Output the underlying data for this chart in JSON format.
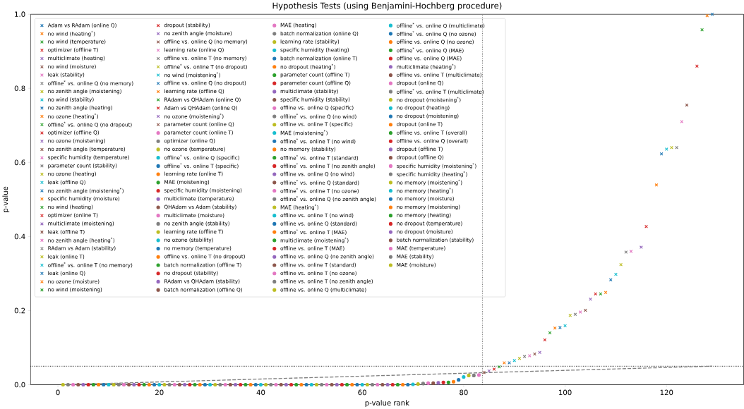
{
  "chart_data": {
    "type": "scatter",
    "title": "Hypothesis Tests (using Benjamini-Hochberg procedure)",
    "xlabel": "p-value rank",
    "ylabel": "p-value",
    "xlim": [
      -5.4,
      135.2
    ],
    "ylim": [
      0,
      1
    ],
    "xticks": [
      0,
      20,
      40,
      60,
      80,
      100,
      120
    ],
    "yticks": [
      {
        "value": 0,
        "label": "0.0"
      },
      {
        "value": 0.2,
        "label": "0.2"
      },
      {
        "value": 0.4,
        "label": "0.4"
      },
      {
        "value": 0.6,
        "label": "0.6"
      },
      {
        "value": 0.8,
        "label": "0.8"
      },
      {
        "value": 1,
        "label": "1.0"
      }
    ],
    "legend": "top left",
    "ref_lines": [
      {
        "axis": "y",
        "value": 0.05,
        "color": "#000000",
        "line_style": "dotted"
      },
      {
        "axis": "x",
        "value": 83.7,
        "color": "#000000",
        "line_style": "dotted"
      }
    ],
    "series": [
      {
        "name": "Adam vs RAdam (online Q)",
        "color": "#1f77b4",
        "marker": "cross",
        "x": [
          129
        ],
        "values": [
          1.0
        ]
      },
      {
        "name": "no wind (heating$^{*}$)",
        "color": "#ff7f0e",
        "marker": "cross",
        "x": [
          128
        ],
        "values": [
          0.996
        ]
      },
      {
        "name": "no wind (temperature)",
        "color": "#2ca02c",
        "marker": "cross",
        "x": [
          127
        ],
        "values": [
          0.958
        ]
      },
      {
        "name": "optimizer (offline T)",
        "color": "#d62728",
        "marker": "cross",
        "x": [
          126
        ],
        "values": [
          0.86
        ]
      },
      {
        "name": "multiclimate (heating)",
        "color": "#9467bd",
        "marker": "cross",
        "values": [
          null
        ]
      },
      {
        "name": "no wind (moisture)",
        "color": "#8c564b",
        "marker": "cross",
        "x": [
          124
        ],
        "values": [
          0.755
        ]
      },
      {
        "name": "leak (stability)",
        "color": "#e377c2",
        "marker": "cross",
        "x": [
          123
        ],
        "values": [
          0.71
        ]
      },
      {
        "name": "offline$^{*}$ vs. online Q (no memory)",
        "color": "#7f7f7f",
        "marker": "cross",
        "x": [
          122
        ],
        "values": [
          0.64
        ]
      },
      {
        "name": "no zenith angle (moistening)",
        "color": "#bcbd22",
        "marker": "cross",
        "x": [
          121
        ],
        "values": [
          0.64
        ]
      },
      {
        "name": "no wind (stability)",
        "color": "#17becf",
        "marker": "cross",
        "x": [
          120
        ],
        "values": [
          0.636
        ]
      },
      {
        "name": "no zenith angle (heating)",
        "color": "#1f77b4",
        "marker": "cross",
        "x": [
          119
        ],
        "values": [
          0.623
        ]
      },
      {
        "name": "no ozone (heating$^{*}$)",
        "color": "#ff7f0e",
        "marker": "cross",
        "x": [
          118
        ],
        "values": [
          0.539
        ]
      },
      {
        "name": "offline$^{*}$ vs. online Q (no dropout)",
        "color": "#2ca02c",
        "marker": "cross",
        "values": [
          null
        ]
      },
      {
        "name": "optimizer (offline Q)",
        "color": "#d62728",
        "marker": "cross",
        "x": [
          116
        ],
        "values": [
          0.427
        ]
      },
      {
        "name": "no ozone (moistening)",
        "color": "#9467bd",
        "marker": "cross",
        "x": [
          115
        ],
        "values": [
          0.371
        ]
      },
      {
        "name": "no zenith angle (temperature)",
        "color": "#8c564b",
        "marker": "cross",
        "values": [
          null
        ]
      },
      {
        "name": "specific humidity (temperature)",
        "color": "#e377c2",
        "marker": "cross",
        "x": [
          113
        ],
        "values": [
          0.36
        ]
      },
      {
        "name": "parameter count (stability)",
        "color": "#7f7f7f",
        "marker": "cross",
        "x": [
          112
        ],
        "values": [
          0.358
        ]
      },
      {
        "name": "no ozone (heating)",
        "color": "#bcbd22",
        "marker": "cross",
        "x": [
          111
        ],
        "values": [
          0.324
        ]
      },
      {
        "name": "leak (offline Q)",
        "color": "#17becf",
        "marker": "cross",
        "x": [
          110
        ],
        "values": [
          0.298
        ]
      },
      {
        "name": "no zenith angle (moistening$^{*}$)",
        "color": "#1f77b4",
        "marker": "cross",
        "x": [
          109
        ],
        "values": [
          0.283
        ]
      },
      {
        "name": "specific humidity (moisture)",
        "color": "#ff7f0e",
        "marker": "cross",
        "x": [
          108
        ],
        "values": [
          0.249
        ]
      },
      {
        "name": "no wind (heating)",
        "color": "#2ca02c",
        "marker": "cross",
        "x": [
          107
        ],
        "values": [
          0.245
        ]
      },
      {
        "name": "optimizer (online T)",
        "color": "#d62728",
        "marker": "cross",
        "x": [
          106
        ],
        "values": [
          0.245
        ]
      },
      {
        "name": "multiclimate (moistening)",
        "color": "#9467bd",
        "marker": "cross",
        "x": [
          105
        ],
        "values": [
          0.231
        ]
      },
      {
        "name": "leak (offline T)",
        "color": "#8c564b",
        "marker": "cross",
        "x": [
          104
        ],
        "values": [
          0.201
        ]
      },
      {
        "name": "no zenith angle (heating$^{*}$)",
        "color": "#e377c2",
        "marker": "cross",
        "x": [
          103
        ],
        "values": [
          0.196
        ]
      },
      {
        "name": "RAdam vs Adam (stability)",
        "color": "#7f7f7f",
        "marker": "cross",
        "x": [
          102
        ],
        "values": [
          0.19
        ]
      },
      {
        "name": "leak (online T)",
        "color": "#bcbd22",
        "marker": "cross",
        "x": [
          101
        ],
        "values": [
          0.187
        ]
      },
      {
        "name": "offline$^{*}$ vs. online T (no memory)",
        "color": "#17becf",
        "marker": "cross",
        "x": [
          100
        ],
        "values": [
          0.159
        ]
      },
      {
        "name": "leak (online Q)",
        "color": "#1f77b4",
        "marker": "cross",
        "x": [
          99
        ],
        "values": [
          0.154
        ]
      },
      {
        "name": "no ozone (moisture)",
        "color": "#ff7f0e",
        "marker": "cross",
        "x": [
          98
        ],
        "values": [
          0.153
        ]
      },
      {
        "name": "no wind (moistening)",
        "color": "#2ca02c",
        "marker": "cross",
        "x": [
          97
        ],
        "values": [
          0.14
        ]
      },
      {
        "name": "dropout (stability)",
        "color": "#d62728",
        "marker": "cross",
        "x": [
          96
        ],
        "values": [
          0.121
        ]
      },
      {
        "name": "no zenith angle (moisture)",
        "color": "#9467bd",
        "marker": "cross",
        "x": [
          95
        ],
        "values": [
          0.087
        ]
      },
      {
        "name": "offline vs. online Q (no memory)",
        "color": "#8c564b",
        "marker": "cross",
        "x": [
          94
        ],
        "values": [
          0.083
        ]
      },
      {
        "name": "learning rate (online Q)",
        "color": "#e377c2",
        "marker": "cross",
        "x": [
          93
        ],
        "values": [
          0.078
        ]
      },
      {
        "name": "offline vs. online T (no memory)",
        "color": "#7f7f7f",
        "marker": "cross",
        "x": [
          92
        ],
        "values": [
          0.076
        ]
      },
      {
        "name": "offline$^{*}$ vs. online T (no dropout)",
        "color": "#bcbd22",
        "marker": "cross",
        "x": [
          91
        ],
        "values": [
          0.071
        ]
      },
      {
        "name": "no wind (moistening$^{*}$)",
        "color": "#17becf",
        "marker": "cross",
        "x": [
          90
        ],
        "values": [
          0.065
        ]
      },
      {
        "name": "offline vs. online Q (no dropout)",
        "color": "#1f77b4",
        "marker": "cross",
        "x": [
          89
        ],
        "values": [
          0.059
        ]
      },
      {
        "name": "learning rate (offline Q)",
        "color": "#ff7f0e",
        "marker": "cross",
        "x": [
          88
        ],
        "values": [
          0.059
        ]
      },
      {
        "name": "RAdam vs QHAdam (online Q)",
        "color": "#2ca02c",
        "marker": "cross",
        "x": [
          87
        ],
        "values": [
          0.048
        ]
      },
      {
        "name": "Adam vs QHAdam (online Q)",
        "color": "#d62728",
        "marker": "cross",
        "x": [
          86
        ],
        "values": [
          0.042
        ]
      },
      {
        "name": "no ozone (moistening$^{*}$)",
        "color": "#9467bd",
        "marker": "cross",
        "x": [
          85
        ],
        "values": [
          0.037
        ]
      },
      {
        "name": "parameter count (online Q)",
        "color": "#8c564b",
        "marker": "cross",
        "x": [
          84
        ],
        "values": [
          0.033
        ]
      },
      {
        "name": "parameter count (online T)",
        "color": "#e377c2",
        "marker": "circle",
        "x": [
          83
        ],
        "values": [
          0.026
        ]
      },
      {
        "name": "optimizer (online Q)",
        "color": "#7f7f7f",
        "marker": "circle",
        "x": [
          82
        ],
        "values": [
          0.025
        ]
      },
      {
        "name": "no ozone (temperature)",
        "color": "#bcbd22",
        "marker": "circle",
        "x": [
          81
        ],
        "values": [
          0.025
        ]
      },
      {
        "name": "offline$^{*}$ vs. online Q (specific)",
        "color": "#17becf",
        "marker": "circle",
        "x": [
          80
        ],
        "values": [
          0.021
        ]
      },
      {
        "name": "offline$^{*}$ vs. online T (specific)",
        "color": "#1f77b4",
        "marker": "circle",
        "x": [
          79
        ],
        "values": [
          0.013
        ]
      },
      {
        "name": "learning rate (online T)",
        "color": "#ff7f0e",
        "marker": "circle",
        "x": [
          78
        ],
        "values": [
          0.008
        ]
      },
      {
        "name": "MAE (moistening)",
        "color": "#2ca02c",
        "marker": "circle",
        "x": [
          77
        ],
        "values": [
          0.006
        ]
      },
      {
        "name": "specific humidity (moistening)",
        "color": "#d62728",
        "marker": "circle",
        "x": [
          76
        ],
        "values": [
          0.006
        ]
      },
      {
        "name": "multiclimate (temperature)",
        "color": "#9467bd",
        "marker": "circle",
        "x": [
          75
        ],
        "values": [
          0.005
        ]
      },
      {
        "name": "QHAdam vs Adam (stability)",
        "color": "#8c564b",
        "marker": "circle",
        "x": [
          74
        ],
        "values": [
          0.004
        ]
      },
      {
        "name": "multiclimate (moisture)",
        "color": "#e377c2",
        "marker": "circle",
        "x": [
          73
        ],
        "values": [
          0.004
        ]
      },
      {
        "name": "no zenith angle (stability)",
        "color": "#7f7f7f",
        "marker": "circle",
        "x": [
          72
        ],
        "values": [
          0.003
        ]
      },
      {
        "name": "learning rate (offline T)",
        "color": "#bcbd22",
        "marker": "circle",
        "x": [
          71
        ],
        "values": [
          0.002
        ]
      },
      {
        "name": "no ozone (stability)",
        "color": "#17becf",
        "marker": "circle",
        "x": [
          70
        ],
        "values": [
          0.001
        ]
      },
      {
        "name": "no memory (temperature)",
        "color": "#1f77b4",
        "marker": "circle",
        "x": [
          69
        ],
        "values": [
          0
        ]
      },
      {
        "name": "offline vs. online T (no dropout)",
        "color": "#ff7f0e",
        "marker": "circle",
        "x": [
          68
        ],
        "values": [
          0
        ]
      },
      {
        "name": "batch normalization (offline T)",
        "color": "#2ca02c",
        "marker": "circle",
        "x": [
          67
        ],
        "values": [
          0
        ]
      },
      {
        "name": "no dropout (stability)",
        "color": "#d62728",
        "marker": "circle",
        "x": [
          66
        ],
        "values": [
          0
        ]
      },
      {
        "name": "RAdam vs QHAdam (stability)",
        "color": "#9467bd",
        "marker": "circle",
        "x": [
          65
        ],
        "values": [
          0
        ]
      },
      {
        "name": "batch normalization (offline Q)",
        "color": "#8c564b",
        "marker": "circle",
        "x": [
          64
        ],
        "values": [
          0
        ]
      },
      {
        "name": "MAE (heating)",
        "color": "#e377c2",
        "marker": "circle",
        "x": [
          63
        ],
        "values": [
          0
        ]
      },
      {
        "name": "batch normalization (online Q)",
        "color": "#7f7f7f",
        "marker": "circle",
        "x": [
          62
        ],
        "values": [
          0
        ]
      },
      {
        "name": "learning rate (stability)",
        "color": "#bcbd22",
        "marker": "circle",
        "x": [
          61
        ],
        "values": [
          0
        ]
      },
      {
        "name": "specific humidity (heating)",
        "color": "#17becf",
        "marker": "circle",
        "x": [
          60
        ],
        "values": [
          0
        ]
      },
      {
        "name": "batch normalization (online T)",
        "color": "#1f77b4",
        "marker": "circle",
        "x": [
          59
        ],
        "values": [
          0
        ]
      },
      {
        "name": "no dropout (heating$^{*}$)",
        "color": "#ff7f0e",
        "marker": "circle",
        "x": [
          58
        ],
        "values": [
          0
        ]
      },
      {
        "name": "parameter count (offline T)",
        "color": "#2ca02c",
        "marker": "circle",
        "x": [
          57
        ],
        "values": [
          0
        ]
      },
      {
        "name": "parameter count (offline Q)",
        "color": "#d62728",
        "marker": "circle",
        "x": [
          56
        ],
        "values": [
          0
        ]
      },
      {
        "name": "multiclimate (stability)",
        "color": "#9467bd",
        "marker": "circle",
        "x": [
          55
        ],
        "values": [
          0
        ]
      },
      {
        "name": "specific humidity (stability)",
        "color": "#8c564b",
        "marker": "circle",
        "x": [
          54
        ],
        "values": [
          0
        ]
      },
      {
        "name": "offline vs. online Q (specific)",
        "color": "#e377c2",
        "marker": "circle",
        "x": [
          53
        ],
        "values": [
          0
        ]
      },
      {
        "name": "offline$^{*}$ vs. online Q (no wind)",
        "color": "#7f7f7f",
        "marker": "circle",
        "x": [
          52
        ],
        "values": [
          0
        ]
      },
      {
        "name": "offline vs. online T (specific)",
        "color": "#bcbd22",
        "marker": "circle",
        "x": [
          51
        ],
        "values": [
          0
        ]
      },
      {
        "name": "MAE (moistening$^{*}$)",
        "color": "#17becf",
        "marker": "circle",
        "x": [
          50
        ],
        "values": [
          0
        ]
      },
      {
        "name": "offline$^{*}$ vs. online T (no wind)",
        "color": "#1f77b4",
        "marker": "circle",
        "x": [
          49
        ],
        "values": [
          0
        ]
      },
      {
        "name": "no memory (stability)",
        "color": "#ff7f0e",
        "marker": "circle",
        "x": [
          48
        ],
        "values": [
          0
        ]
      },
      {
        "name": "offline$^{*}$ vs. online T (standard)",
        "color": "#2ca02c",
        "marker": "circle",
        "x": [
          47
        ],
        "values": [
          0
        ]
      },
      {
        "name": "offline$^{*}$ vs. online T (no zenith angle)",
        "color": "#d62728",
        "marker": "circle",
        "x": [
          46
        ],
        "values": [
          0
        ]
      },
      {
        "name": "offline vs. online Q (no wind)",
        "color": "#9467bd",
        "marker": "circle",
        "x": [
          45
        ],
        "values": [
          0
        ]
      },
      {
        "name": "offline$^{*}$ vs. online Q (standard)",
        "color": "#8c564b",
        "marker": "circle",
        "x": [
          44
        ],
        "values": [
          0
        ]
      },
      {
        "name": "offline$^{*}$ vs. online T (no ozone)",
        "color": "#e377c2",
        "marker": "circle",
        "x": [
          43
        ],
        "values": [
          0
        ]
      },
      {
        "name": "offline$^{*}$ vs. online Q (no zenith angle)",
        "color": "#7f7f7f",
        "marker": "circle",
        "x": [
          42
        ],
        "values": [
          0
        ]
      },
      {
        "name": "MAE (heating$^{*}$)",
        "color": "#bcbd22",
        "marker": "circle",
        "x": [
          41
        ],
        "values": [
          0
        ]
      },
      {
        "name": "offline vs. online T (no wind)",
        "color": "#17becf",
        "marker": "circle",
        "x": [
          40
        ],
        "values": [
          0
        ]
      },
      {
        "name": "offline vs. online Q (standard)",
        "color": "#1f77b4",
        "marker": "circle",
        "x": [
          39
        ],
        "values": [
          0
        ]
      },
      {
        "name": "offline$^{*}$ vs. online T (MAE)",
        "color": "#ff7f0e",
        "marker": "circle",
        "x": [
          38
        ],
        "values": [
          0
        ]
      },
      {
        "name": "multiclimate (moistening$^{*}$)",
        "color": "#2ca02c",
        "marker": "circle",
        "x": [
          37
        ],
        "values": [
          0
        ]
      },
      {
        "name": "offline vs. online T (MAE)",
        "color": "#d62728",
        "marker": "circle",
        "x": [
          36
        ],
        "values": [
          0
        ]
      },
      {
        "name": "offline vs. online Q (no zenith angle)",
        "color": "#9467bd",
        "marker": "circle",
        "x": [
          35
        ],
        "values": [
          0
        ]
      },
      {
        "name": "offline vs. online T (standard)",
        "color": "#8c564b",
        "marker": "circle",
        "x": [
          34
        ],
        "values": [
          0
        ]
      },
      {
        "name": "offline vs. online T (no ozone)",
        "color": "#e377c2",
        "marker": "circle",
        "x": [
          33
        ],
        "values": [
          0
        ]
      },
      {
        "name": "offline vs. online T (no zenith angle)",
        "color": "#7f7f7f",
        "marker": "circle",
        "x": [
          32
        ],
        "values": [
          0
        ]
      },
      {
        "name": "offline vs. online Q (multiclimate)",
        "color": "#bcbd22",
        "marker": "circle",
        "x": [
          31
        ],
        "values": [
          0
        ]
      },
      {
        "name": "offline$^{*}$ vs. online Q (multiclimate)",
        "color": "#17becf",
        "marker": "circle",
        "x": [
          30
        ],
        "values": [
          0
        ]
      },
      {
        "name": "offline$^{*}$ vs. online Q (no ozone)",
        "color": "#1f77b4",
        "marker": "circle",
        "x": [
          29
        ],
        "values": [
          0
        ]
      },
      {
        "name": "offline vs. online Q (no ozone)",
        "color": "#ff7f0e",
        "marker": "circle",
        "x": [
          28
        ],
        "values": [
          0
        ]
      },
      {
        "name": "offline$^{*}$ vs. online Q (MAE)",
        "color": "#2ca02c",
        "marker": "circle",
        "x": [
          27
        ],
        "values": [
          0
        ]
      },
      {
        "name": "offline vs. online Q (MAE)",
        "color": "#d62728",
        "marker": "circle",
        "x": [
          26
        ],
        "values": [
          0
        ]
      },
      {
        "name": "multiclimate (heating$^{*}$)",
        "color": "#9467bd",
        "marker": "circle",
        "x": [
          25
        ],
        "values": [
          0
        ]
      },
      {
        "name": "offline vs. online T (multiclimate)",
        "color": "#8c564b",
        "marker": "circle",
        "x": [
          24
        ],
        "values": [
          0
        ]
      },
      {
        "name": "dropout (online Q)",
        "color": "#e377c2",
        "marker": "circle",
        "x": [
          23
        ],
        "values": [
          0
        ]
      },
      {
        "name": "offline$^{*}$ vs. online T (multiclimate)",
        "color": "#7f7f7f",
        "marker": "circle",
        "x": [
          22
        ],
        "values": [
          0
        ]
      },
      {
        "name": "no dropout (moistening$^{*}$)",
        "color": "#bcbd22",
        "marker": "circle",
        "x": [
          21
        ],
        "values": [
          0
        ]
      },
      {
        "name": "no dropout (heating)",
        "color": "#17becf",
        "marker": "circle",
        "x": [
          20
        ],
        "values": [
          0
        ]
      },
      {
        "name": "no dropout (moistening)",
        "color": "#1f77b4",
        "marker": "circle",
        "x": [
          19
        ],
        "values": [
          0
        ]
      },
      {
        "name": "dropout (online T)",
        "color": "#ff7f0e",
        "marker": "circle",
        "x": [
          18
        ],
        "values": [
          0
        ]
      },
      {
        "name": "offline vs. online T (overall)",
        "color": "#2ca02c",
        "marker": "circle",
        "x": [
          17
        ],
        "values": [
          0
        ]
      },
      {
        "name": "offline vs. online Q (overall)",
        "color": "#d62728",
        "marker": "circle",
        "x": [
          16
        ],
        "values": [
          0
        ]
      },
      {
        "name": "dropout (offline T)",
        "color": "#9467bd",
        "marker": "circle",
        "x": [
          15
        ],
        "values": [
          0
        ]
      },
      {
        "name": "dropout (offline Q)",
        "color": "#8c564b",
        "marker": "circle",
        "x": [
          14
        ],
        "values": [
          0
        ]
      },
      {
        "name": "specific humidity (moistening$^{*}$)",
        "color": "#e377c2",
        "marker": "circle",
        "x": [
          13
        ],
        "values": [
          0
        ]
      },
      {
        "name": "specific humidity (heating$^{*}$)",
        "color": "#7f7f7f",
        "marker": "circle",
        "x": [
          12
        ],
        "values": [
          0
        ]
      },
      {
        "name": "no memory (moistening$^{*}$)",
        "color": "#bcbd22",
        "marker": "circle",
        "x": [
          11
        ],
        "values": [
          0
        ]
      },
      {
        "name": "no memory (heating$^{*}$)",
        "color": "#17becf",
        "marker": "circle",
        "x": [
          10
        ],
        "values": [
          0
        ]
      },
      {
        "name": "no memory (moisture)",
        "color": "#1f77b4",
        "marker": "circle",
        "x": [
          9
        ],
        "values": [
          0
        ]
      },
      {
        "name": "no memory (moistening)",
        "color": "#ff7f0e",
        "marker": "circle",
        "x": [
          8
        ],
        "values": [
          0
        ]
      },
      {
        "name": "no memory (heating)",
        "color": "#2ca02c",
        "marker": "circle",
        "x": [
          7
        ],
        "values": [
          0
        ]
      },
      {
        "name": "no dropout (temperature)",
        "color": "#d62728",
        "marker": "circle",
        "x": [
          6
        ],
        "values": [
          0
        ]
      },
      {
        "name": "no dropout (moisture)",
        "color": "#9467bd",
        "marker": "circle",
        "x": [
          5
        ],
        "values": [
          0
        ]
      },
      {
        "name": "batch normalization (stability)",
        "color": "#8c564b",
        "marker": "circle",
        "x": [
          4
        ],
        "values": [
          0
        ]
      },
      {
        "name": "MAE (temperature)",
        "color": "#e377c2",
        "marker": "circle",
        "x": [
          3
        ],
        "values": [
          0
        ]
      },
      {
        "name": "MAE (stability)",
        "color": "#7f7f7f",
        "marker": "circle",
        "x": [
          2
        ],
        "values": [
          0
        ]
      },
      {
        "name": "MAE (moisture)",
        "color": "#bcbd22",
        "marker": "circle",
        "x": [
          1
        ],
        "values": [
          0
        ]
      },
      {
        "type": "line",
        "color": "#7f7f7f",
        "line_style": "dashed",
        "x": [
          1,
          129
        ],
        "values": [
          0,
          0.05
        ]
      }
    ]
  }
}
